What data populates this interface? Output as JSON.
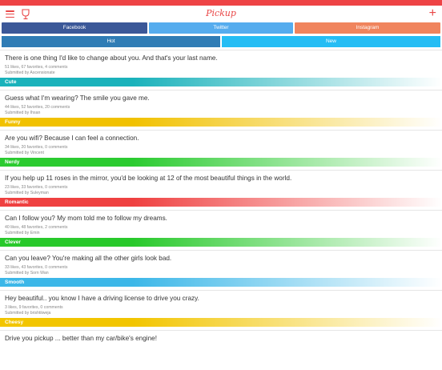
{
  "app": {
    "title": "Pickup"
  },
  "share": [
    {
      "label": "Facebook",
      "color": "#3b5898"
    },
    {
      "label": "Twitter",
      "color": "#55acee"
    },
    {
      "label": "Instagram",
      "color": "#f0845d"
    }
  ],
  "sort": [
    {
      "label": "Hot",
      "color": "#2f7cb5"
    },
    {
      "label": "New",
      "color": "#25bdf4"
    }
  ],
  "posts": [
    {
      "text": "There is one thing I'd like to change about you. And that's your last name.",
      "stats": "51 likes, 67 favorites, 4 comments",
      "author": "Submitted by Ascensionate",
      "tag": "Cute",
      "color": "#1ab2bb"
    },
    {
      "text": "Guess what I'm wearing? The smile you gave me.",
      "stats": "44 likes, 52 favorites, 20 comments",
      "author": "Submitted by Ihsan",
      "tag": "Funny",
      "color": "#f1c100"
    },
    {
      "text": "Are you wifi? Because I can feel a connection.",
      "stats": "34 likes, 20 favorites, 0 comments",
      "author": "Submitted by Vincent",
      "tag": "Nerdy",
      "color": "#2bcb30"
    },
    {
      "text": "If you help up 11 roses in the mirror, you'd be looking at 12 of the most beautiful things in the world.",
      "stats": "23 likes, 33 favorites, 0 comments",
      "author": "Submitted by Suleyman",
      "tag": "Romantic",
      "color": "#ef4040"
    },
    {
      "text": "Can I follow you? My mom told me to follow my dreams.",
      "stats": "40 likes, 48 favorites, 2 comments",
      "author": "Submitted by Emin",
      "tag": "Clever",
      "color": "#28c92b"
    },
    {
      "text": "Can you leave? You're making all the other girls look bad.",
      "stats": "33 likes, 43 favorites, 0 comments",
      "author": "Submitted by Sorn Wan",
      "tag": "Smooth",
      "color": "#3cb7e8"
    },
    {
      "text": "Hey beautiful.. you know I have a driving license to drive you crazy.",
      "stats": "3 likes, 9 favorites, 0 comments",
      "author": "Submitted by brishtiiweja",
      "tag": "Cheesy",
      "color": "#f2c500"
    },
    {
      "text": "Drive you pickup ... better than my car/bike's engine!",
      "stats": "",
      "author": "",
      "tag": "",
      "color": "#ffffff"
    }
  ]
}
